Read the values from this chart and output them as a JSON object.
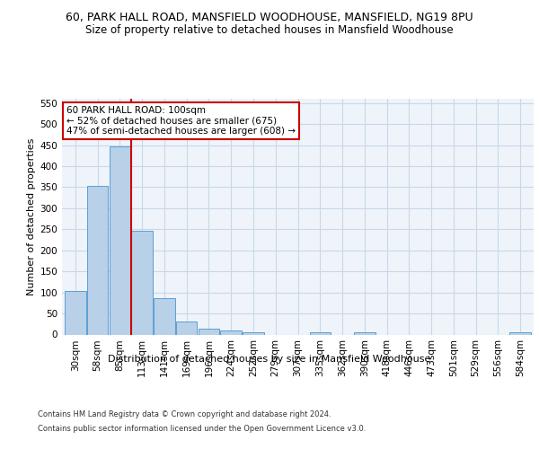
{
  "title_line1": "60, PARK HALL ROAD, MANSFIELD WOODHOUSE, MANSFIELD, NG19 8PU",
  "title_line2": "Size of property relative to detached houses in Mansfield Woodhouse",
  "xlabel": "Distribution of detached houses by size in Mansfield Woodhouse",
  "ylabel": "Number of detached properties",
  "footer_line1": "Contains HM Land Registry data © Crown copyright and database right 2024.",
  "footer_line2": "Contains public sector information licensed under the Open Government Licence v3.0.",
  "bar_labels": [
    "30sqm",
    "58sqm",
    "85sqm",
    "113sqm",
    "141sqm",
    "169sqm",
    "196sqm",
    "224sqm",
    "252sqm",
    "279sqm",
    "307sqm",
    "335sqm",
    "362sqm",
    "390sqm",
    "418sqm",
    "446sqm",
    "473sqm",
    "501sqm",
    "529sqm",
    "556sqm",
    "584sqm"
  ],
  "bar_values": [
    103,
    353,
    448,
    246,
    87,
    30,
    13,
    9,
    5,
    0,
    0,
    5,
    0,
    5,
    0,
    0,
    0,
    0,
    0,
    0,
    5
  ],
  "bar_color": "#b8d0e8",
  "bar_edgecolor": "#5a9fd4",
  "vline_x": 2.5,
  "vline_color": "#cc0000",
  "annotation_text": "60 PARK HALL ROAD: 100sqm\n← 52% of detached houses are smaller (675)\n47% of semi-detached houses are larger (608) →",
  "annotation_box_color": "#ffffff",
  "annotation_box_edgecolor": "#cc0000",
  "ylim": [
    0,
    560
  ],
  "yticks": [
    0,
    50,
    100,
    150,
    200,
    250,
    300,
    350,
    400,
    450,
    500,
    550
  ],
  "grid_color": "#c8d8e8",
  "bg_color": "#eef4fa",
  "title_fontsize": 9,
  "subtitle_fontsize": 8.5,
  "axis_label_fontsize": 8,
  "tick_fontsize": 7.5,
  "footer_fontsize": 6,
  "annotation_fontsize": 7.5
}
